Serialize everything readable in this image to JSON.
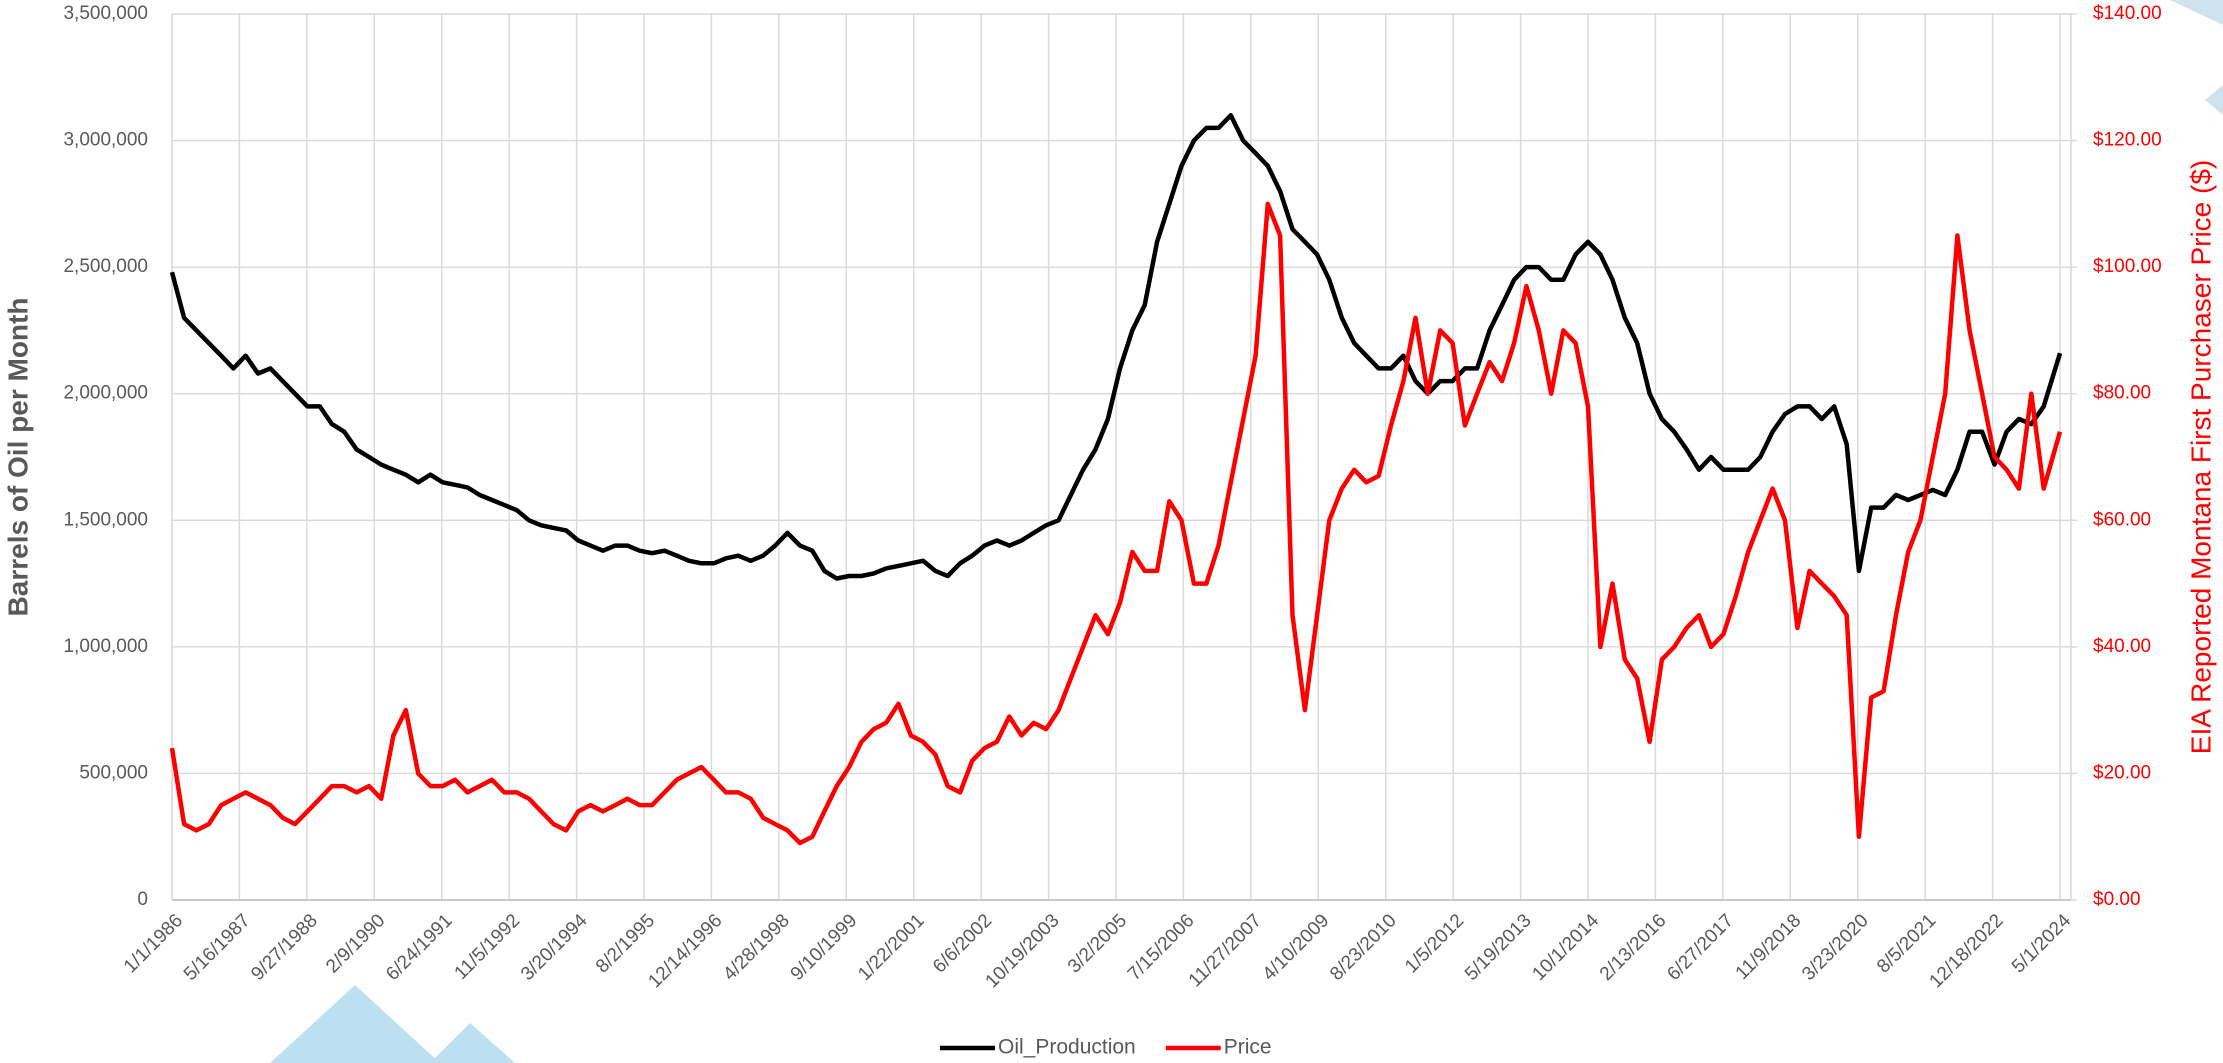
{
  "chart_data": {
    "type": "line",
    "y_label": "Barrels of Oil per Month",
    "y2_label": "EIA Reported Montana First Purchaser Price ($)",
    "grid": true,
    "legend": "bottom",
    "xlim": [
      "1/1/1986",
      "5/1/2024"
    ],
    "xticks": [
      "1/1/1986",
      "5/16/1987",
      "9/27/1988",
      "2/9/1990",
      "6/24/1991",
      "11/5/1992",
      "3/20/1994",
      "8/2/1995",
      "12/14/1996",
      "4/28/1998",
      "9/10/1999",
      "1/22/2001",
      "6/6/2002",
      "10/19/2003",
      "3/2/2005",
      "7/15/2006",
      "11/27/2007",
      "4/10/2009",
      "8/23/2010",
      "1/5/2012",
      "5/19/2013",
      "10/1/2014",
      "2/13/2016",
      "6/27/2017",
      "11/9/2018",
      "3/23/2020",
      "8/5/2021",
      "12/18/2022",
      "5/1/2024"
    ],
    "ylim": [
      0,
      3500000
    ],
    "yticks": [
      0,
      {
        "value": 500000,
        "label": "500,000"
      },
      {
        "value": 1000000,
        "label": "1,000,000"
      },
      {
        "value": 1500000,
        "label": "1,500,000"
      },
      {
        "value": 2000000,
        "label": "2,000,000"
      },
      {
        "value": 2500000,
        "label": "2,500,000"
      },
      {
        "value": 3000000,
        "label": "3,000,000"
      },
      {
        "value": 3500000,
        "label": "3,500,000"
      }
    ],
    "y2lim": [
      0,
      140
    ],
    "y2ticks": [
      {
        "value": 0,
        "label": "$0.00"
      },
      {
        "value": 20,
        "label": "$20.00"
      },
      {
        "value": 40,
        "label": "$40.00"
      },
      {
        "value": 60,
        "label": "$60.00"
      },
      {
        "value": 80,
        "label": "$80.00"
      },
      {
        "value": 100,
        "label": "$100.00"
      },
      {
        "value": 120,
        "label": "$120.00"
      },
      {
        "value": 140,
        "label": "$140.00"
      }
    ],
    "x": [
      "1/1/1986",
      "4/1/1986",
      "7/1/1986",
      "10/1/1986",
      "1/1/1987",
      "4/1/1987",
      "7/1/1987",
      "10/1/1987",
      "1/1/1988",
      "4/1/1988",
      "7/1/1988",
      "10/1/1988",
      "1/1/1989",
      "4/1/1989",
      "7/1/1989",
      "10/1/1989",
      "1/1/1990",
      "4/1/1990",
      "7/1/1990",
      "10/1/1990",
      "1/1/1991",
      "4/1/1991",
      "7/1/1991",
      "10/1/1991",
      "1/1/1992",
      "4/1/1992",
      "7/1/1992",
      "10/1/1992",
      "1/1/1993",
      "4/1/1993",
      "7/1/1993",
      "10/1/1993",
      "1/1/1994",
      "4/1/1994",
      "7/1/1994",
      "10/1/1994",
      "1/1/1995",
      "4/1/1995",
      "7/1/1995",
      "10/1/1995",
      "1/1/1996",
      "4/1/1996",
      "7/1/1996",
      "10/1/1996",
      "1/1/1997",
      "4/1/1997",
      "7/1/1997",
      "10/1/1997",
      "1/1/1998",
      "4/1/1998",
      "7/1/1998",
      "10/1/1998",
      "1/1/1999",
      "4/1/1999",
      "7/1/1999",
      "10/1/1999",
      "1/1/2000",
      "4/1/2000",
      "7/1/2000",
      "10/1/2000",
      "1/1/2001",
      "4/1/2001",
      "7/1/2001",
      "10/1/2001",
      "1/1/2002",
      "4/1/2002",
      "7/1/2002",
      "10/1/2002",
      "1/1/2003",
      "4/1/2003",
      "7/1/2003",
      "10/1/2003",
      "1/1/2004",
      "4/1/2004",
      "7/1/2004",
      "10/1/2004",
      "1/1/2005",
      "4/1/2005",
      "7/1/2005",
      "10/1/2005",
      "1/1/2006",
      "4/1/2006",
      "7/1/2006",
      "10/1/2006",
      "1/1/2007",
      "4/1/2007",
      "7/1/2007",
      "10/1/2007",
      "1/1/2008",
      "4/1/2008",
      "7/1/2008",
      "10/1/2008",
      "1/1/2009",
      "4/1/2009",
      "7/1/2009",
      "10/1/2009",
      "1/1/2010",
      "4/1/2010",
      "7/1/2010",
      "10/1/2010",
      "1/1/2011",
      "4/1/2011",
      "7/1/2011",
      "10/1/2011",
      "1/1/2012",
      "4/1/2012",
      "7/1/2012",
      "10/1/2012",
      "1/1/2013",
      "4/1/2013",
      "7/1/2013",
      "10/1/2013",
      "1/1/2014",
      "4/1/2014",
      "7/1/2014",
      "10/1/2014",
      "1/1/2015",
      "4/1/2015",
      "7/1/2015",
      "10/1/2015",
      "1/1/2016",
      "4/1/2016",
      "7/1/2016",
      "10/1/2016",
      "1/1/2017",
      "4/1/2017",
      "7/1/2017",
      "10/1/2017",
      "1/1/2018",
      "4/1/2018",
      "7/1/2018",
      "10/1/2018",
      "1/1/2019",
      "4/1/2019",
      "7/1/2019",
      "10/1/2019",
      "1/1/2020",
      "4/1/2020",
      "7/1/2020",
      "10/1/2020",
      "1/1/2021",
      "4/1/2021",
      "7/1/2021",
      "10/1/2021",
      "1/1/2022",
      "4/1/2022",
      "7/1/2022",
      "10/1/2022",
      "1/1/2023",
      "4/1/2023",
      "7/1/2023",
      "10/1/2023",
      "1/1/2024",
      "5/1/2024"
    ],
    "series": [
      {
        "name": "Oil_Production",
        "color": "#000000",
        "values": [
          2480000,
          2300000,
          2250000,
          2200000,
          2150000,
          2100000,
          2150000,
          2080000,
          2100000,
          2050000,
          2000000,
          1950000,
          1950000,
          1880000,
          1850000,
          1780000,
          1750000,
          1720000,
          1700000,
          1680000,
          1650000,
          1680000,
          1650000,
          1640000,
          1630000,
          1600000,
          1580000,
          1560000,
          1540000,
          1500000,
          1480000,
          1470000,
          1460000,
          1420000,
          1400000,
          1380000,
          1400000,
          1400000,
          1380000,
          1370000,
          1380000,
          1360000,
          1340000,
          1330000,
          1330000,
          1350000,
          1360000,
          1340000,
          1360000,
          1400000,
          1450000,
          1400000,
          1380000,
          1300000,
          1270000,
          1280000,
          1280000,
          1290000,
          1310000,
          1320000,
          1330000,
          1340000,
          1300000,
          1280000,
          1330000,
          1360000,
          1400000,
          1420000,
          1400000,
          1420000,
          1450000,
          1480000,
          1500000,
          1600000,
          1700000,
          1780000,
          1900000,
          2100000,
          2250000,
          2350000,
          2600000,
          2750000,
          2900000,
          3000000,
          3050000,
          3050000,
          3100000,
          3000000,
          2950000,
          2900000,
          2800000,
          2650000,
          2600000,
          2550000,
          2450000,
          2300000,
          2200000,
          2150000,
          2100000,
          2100000,
          2150000,
          2050000,
          2000000,
          2050000,
          2050000,
          2100000,
          2100000,
          2250000,
          2350000,
          2450000,
          2500000,
          2500000,
          2450000,
          2450000,
          2550000,
          2600000,
          2550000,
          2450000,
          2300000,
          2200000,
          2000000,
          1900000,
          1850000,
          1780000,
          1700000,
          1750000,
          1700000,
          1700000,
          1700000,
          1750000,
          1850000,
          1920000,
          1950000,
          1950000,
          1900000,
          1950000,
          1800000,
          1300000,
          1550000,
          1550000,
          1600000,
          1580000,
          1600000,
          1620000,
          1600000,
          1700000,
          1850000,
          1850000,
          1720000,
          1850000,
          1900000,
          1880000,
          1950000,
          2160000
        ]
      },
      {
        "name": "Price",
        "color": "#ff0000",
        "axis": "y2",
        "values": [
          24,
          12,
          11,
          12,
          15,
          16,
          17,
          16,
          15,
          13,
          12,
          14,
          16,
          18,
          18,
          17,
          18,
          16,
          26,
          30,
          20,
          18,
          18,
          19,
          17,
          18,
          19,
          17,
          17,
          16,
          14,
          12,
          11,
          14,
          15,
          14,
          15,
          16,
          15,
          15,
          17,
          19,
          20,
          21,
          19,
          17,
          17,
          16,
          13,
          12,
          11,
          9,
          10,
          14,
          18,
          21,
          25,
          27,
          28,
          31,
          26,
          25,
          23,
          18,
          17,
          22,
          24,
          25,
          29,
          26,
          28,
          27,
          30,
          35,
          40,
          45,
          42,
          47,
          55,
          52,
          52,
          63,
          60,
          50,
          50,
          56,
          66,
          76,
          86,
          110,
          105,
          45,
          30,
          45,
          60,
          65,
          68,
          66,
          67,
          75,
          82,
          92,
          80,
          90,
          88,
          75,
          80,
          85,
          82,
          88,
          97,
          90,
          80,
          90,
          88,
          78,
          40,
          50,
          38,
          35,
          25,
          38,
          40,
          43,
          45,
          40,
          42,
          48,
          55,
          60,
          65,
          60,
          43,
          52,
          50,
          48,
          45,
          10,
          32,
          33,
          45,
          55,
          60,
          70,
          80,
          105,
          90,
          80,
          70,
          68,
          65,
          80,
          65,
          74
        ]
      }
    ]
  }
}
